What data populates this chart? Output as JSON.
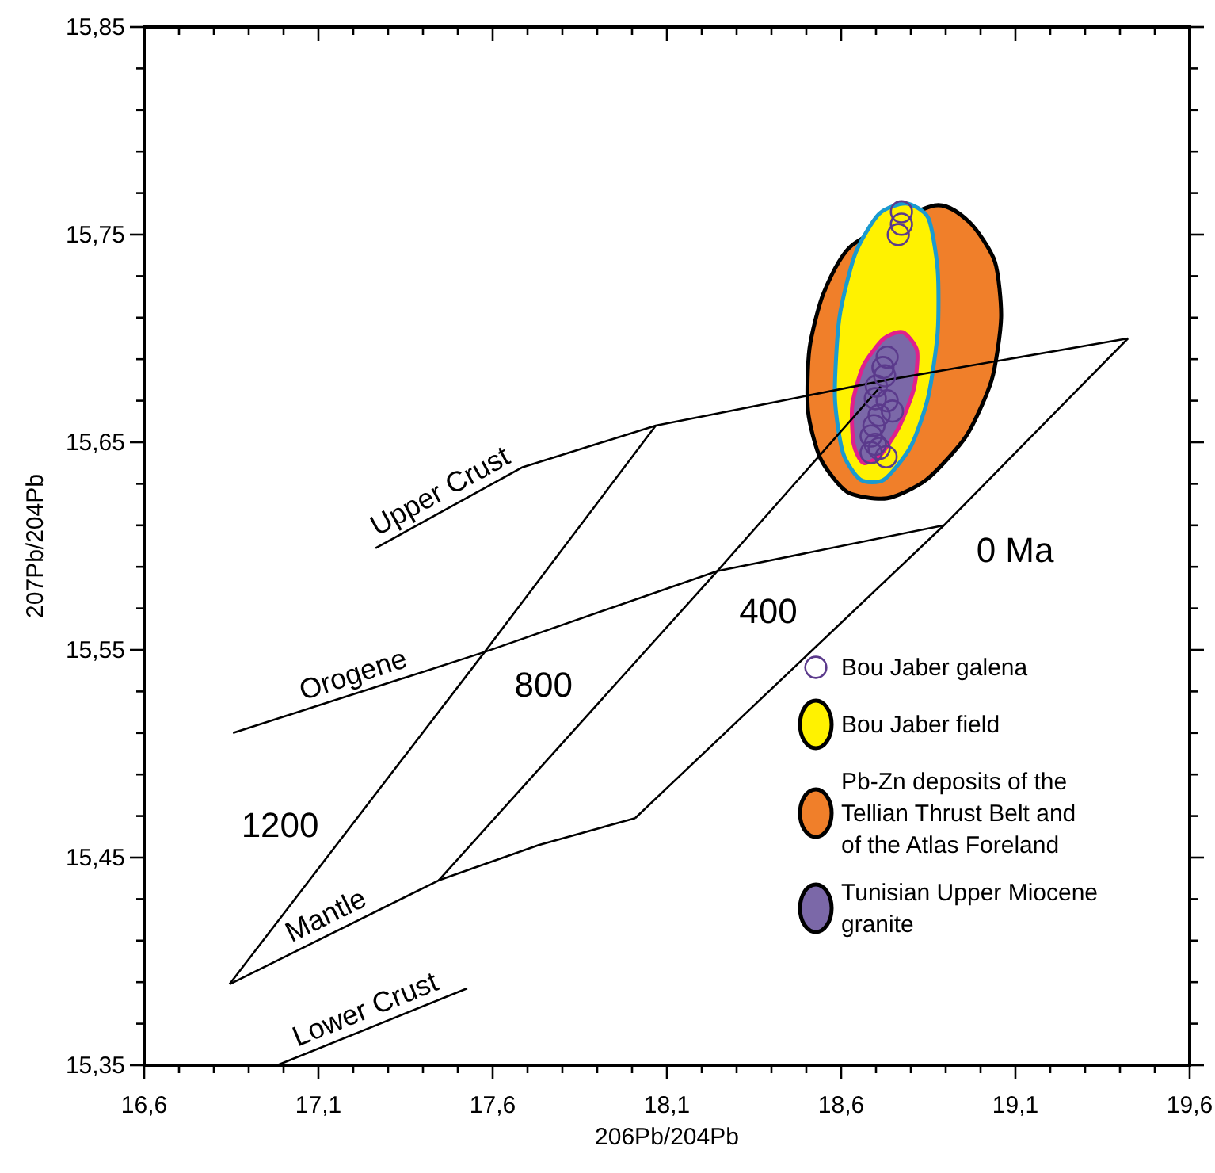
{
  "chart_data": {
    "type": "line",
    "xlabel": "206Pb/204Pb",
    "ylabel": "207Pb/204Pb",
    "xlim": [
      16.6,
      19.6
    ],
    "ylim": [
      15.35,
      15.85
    ],
    "xticks": [
      {
        "value": 16.6,
        "label": "16,6"
      },
      {
        "value": 16.7,
        "label": null
      },
      {
        "value": 16.8,
        "label": null
      },
      {
        "value": 16.9,
        "label": null
      },
      {
        "value": 17.0,
        "label": null
      },
      {
        "value": 17.1,
        "label": "17,1"
      },
      {
        "value": 17.2,
        "label": null
      },
      {
        "value": 17.3,
        "label": null
      },
      {
        "value": 17.4,
        "label": null
      },
      {
        "value": 17.5,
        "label": null
      },
      {
        "value": 17.6,
        "label": "17,6"
      },
      {
        "value": 17.7,
        "label": null
      },
      {
        "value": 17.8,
        "label": null
      },
      {
        "value": 17.9,
        "label": null
      },
      {
        "value": 18.0,
        "label": null
      },
      {
        "value": 18.1,
        "label": "18,1"
      },
      {
        "value": 18.2,
        "label": null
      },
      {
        "value": 18.3,
        "label": null
      },
      {
        "value": 18.4,
        "label": null
      },
      {
        "value": 18.5,
        "label": null
      },
      {
        "value": 18.6,
        "label": "18,6"
      },
      {
        "value": 18.7,
        "label": null
      },
      {
        "value": 18.8,
        "label": null
      },
      {
        "value": 18.9,
        "label": null
      },
      {
        "value": 19.0,
        "label": null
      },
      {
        "value": 19.1,
        "label": "19,1"
      },
      {
        "value": 19.2,
        "label": null
      },
      {
        "value": 19.3,
        "label": null
      },
      {
        "value": 19.4,
        "label": null
      },
      {
        "value": 19.5,
        "label": null
      },
      {
        "value": 19.6,
        "label": "19,6"
      }
    ],
    "yticks": [
      {
        "value": 15.35,
        "label": "15,35"
      },
      {
        "value": 15.37,
        "label": null
      },
      {
        "value": 15.39,
        "label": null
      },
      {
        "value": 15.41,
        "label": null
      },
      {
        "value": 15.43,
        "label": null
      },
      {
        "value": 15.45,
        "label": "15,45"
      },
      {
        "value": 15.47,
        "label": null
      },
      {
        "value": 15.49,
        "label": null
      },
      {
        "value": 15.51,
        "label": null
      },
      {
        "value": 15.53,
        "label": null
      },
      {
        "value": 15.55,
        "label": "15,55"
      },
      {
        "value": 15.57,
        "label": null
      },
      {
        "value": 15.59,
        "label": null
      },
      {
        "value": 15.61,
        "label": null
      },
      {
        "value": 15.63,
        "label": null
      },
      {
        "value": 15.65,
        "label": "15,65"
      },
      {
        "value": 15.67,
        "label": null
      },
      {
        "value": 15.69,
        "label": null
      },
      {
        "value": 15.71,
        "label": null
      },
      {
        "value": 15.73,
        "label": null
      },
      {
        "value": 15.75,
        "label": "15,75"
      },
      {
        "value": 15.77,
        "label": null
      },
      {
        "value": 15.79,
        "label": null
      },
      {
        "value": 15.81,
        "label": null
      },
      {
        "value": 15.83,
        "label": null
      },
      {
        "value": 15.85,
        "label": "15,85"
      }
    ],
    "legend": "bottom right",
    "marker": "none",
    "line_style": "solid",
    "series": [
      {
        "name": "Upper Crust",
        "color": "#000000",
        "x": [
          17.264,
          17.686,
          18.068,
          18.732,
          19.423
        ],
        "values": [
          15.599,
          15.638,
          15.658,
          15.68,
          15.7
        ]
      },
      {
        "name": "Orogene",
        "color": "#000000",
        "x": [
          16.855,
          17.577,
          18.245,
          18.895
        ],
        "values": [
          15.51,
          15.549,
          15.588,
          15.61
        ]
      },
      {
        "name": "Mantle",
        "color": "#000000",
        "x": [
          16.845,
          17.445,
          17.732,
          18.009
        ],
        "values": [
          15.389,
          15.439,
          15.456,
          15.469
        ]
      },
      {
        "name": "Lower Crust",
        "color": "#000000",
        "x": [
          16.982,
          17.527
        ],
        "values": [
          15.35,
          15.387
        ]
      },
      {
        "color": "#000000",
        "x": [
          16.845,
          17.577,
          18.068
        ],
        "values": [
          15.389,
          15.549,
          15.658
        ]
      },
      {
        "color": "#000000",
        "x": [
          17.445,
          18.245,
          18.714
        ],
        "values": [
          15.439,
          15.588,
          15.677
        ]
      },
      {
        "color": "#000000",
        "x": [
          18.009,
          18.895,
          19.423
        ],
        "values": [
          15.469,
          15.61,
          15.7
        ]
      },
      {
        "name": "Bou Jaber galena",
        "type": "scatter",
        "marker": "circle",
        "color": "#5b3a8c",
        "x": [
          18.773,
          18.773,
          18.764,
          18.732,
          18.72,
          18.725,
          18.701,
          18.698,
          18.732,
          18.747,
          18.709,
          18.694,
          18.686,
          18.698,
          18.686,
          18.729,
          18.709
        ],
        "values": [
          15.761,
          15.755,
          15.75,
          15.691,
          15.686,
          15.682,
          15.677,
          15.671,
          15.67,
          15.665,
          15.663,
          15.658,
          15.653,
          15.649,
          15.645,
          15.643,
          15.647
        ]
      },
      {
        "name": "Bou Jaber field",
        "type": "area",
        "color": "#fff200",
        "x": [
          18.786,
          18.85,
          18.877,
          18.877,
          18.85,
          18.8,
          18.723,
          18.655,
          18.605,
          18.582,
          18.595,
          18.641,
          18.709
        ],
        "values": [
          15.765,
          15.758,
          15.733,
          15.703,
          15.672,
          15.648,
          15.632,
          15.632,
          15.645,
          15.672,
          15.71,
          15.741,
          15.76
        ]
      },
      {
        "name": "Pb-Zn deposits of the Tellian Thrust Belt and of the Atlas Foreland",
        "type": "area",
        "color": "#f07f2a",
        "x": [
          18.868,
          18.968,
          19.041,
          19.059,
          19.032,
          18.959,
          18.845,
          18.732,
          18.618,
          18.541,
          18.505,
          18.509,
          18.55,
          18.632
        ],
        "values": [
          15.764,
          15.756,
          15.737,
          15.71,
          15.68,
          15.653,
          15.632,
          15.623,
          15.626,
          15.642,
          15.665,
          15.695,
          15.722,
          15.745
        ]
      },
      {
        "name": "Tunisian Upper Miocene granite",
        "type": "area",
        "color": "#7b68a8",
        "x": [
          18.777,
          18.818,
          18.809,
          18.768,
          18.714,
          18.664,
          18.636,
          18.632,
          18.664,
          18.723
        ],
        "values": [
          15.703,
          15.694,
          15.676,
          15.658,
          15.644,
          15.64,
          15.649,
          15.668,
          15.687,
          15.7
        ]
      }
    ],
    "annotations": [
      "1200",
      "800",
      "400",
      "0 Ma"
    ]
  }
}
